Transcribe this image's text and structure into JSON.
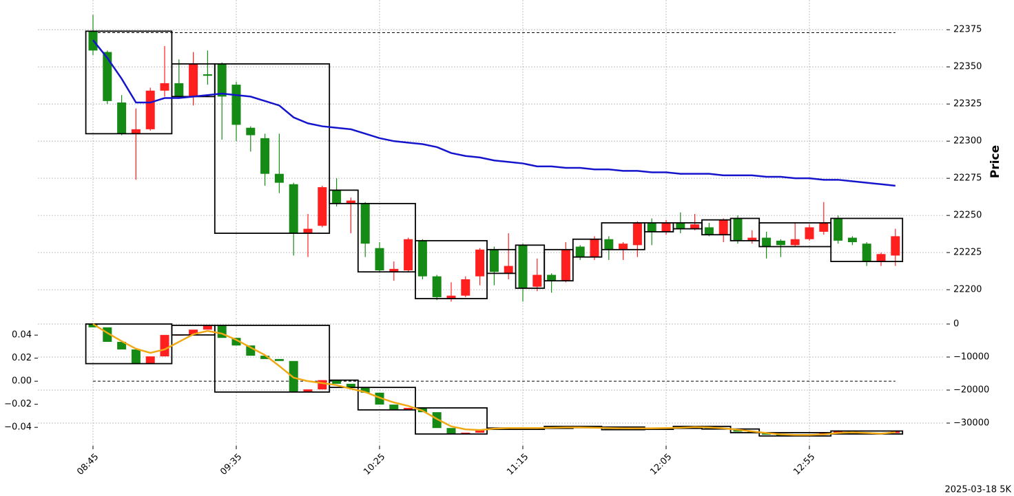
{
  "chart_data": [
    {
      "type": "candlestick",
      "ylabel": "Price",
      "open": [
        22374,
        22360,
        22326,
        22305,
        22308,
        22334,
        22339,
        22330,
        22345,
        22352,
        22338,
        22309,
        22302,
        22278,
        22271,
        22238,
        22243,
        22267,
        22258,
        22258,
        22228,
        22212,
        22213,
        22233,
        22209,
        22194,
        22196,
        22209,
        22227,
        22211,
        22230,
        22202,
        22210,
        22206,
        22229,
        22222,
        22234,
        22227,
        22230,
        22245,
        22239,
        22245,
        22241,
        22242,
        22237,
        22248,
        22233,
        22235,
        22233,
        22230,
        22234,
        22239,
        22248,
        22235,
        22231,
        22219,
        22223
      ],
      "high": [
        22385,
        22361,
        22331,
        22322,
        22336,
        22364,
        22355,
        22360,
        22361,
        22353,
        22340,
        22310,
        22305,
        22305,
        22272,
        22251,
        22270,
        22275,
        22262,
        22259,
        22232,
        22219,
        22235,
        22234,
        22210,
        22205,
        22209,
        22228,
        22229,
        22238,
        22231,
        22221,
        22211,
        22232,
        22230,
        22236,
        22236,
        22232,
        22246,
        22248,
        22247,
        22252,
        22251,
        22245,
        22248,
        22250,
        22240,
        22239,
        22234,
        22245,
        22244,
        22259,
        22250,
        22236,
        22232,
        22225,
        22241
      ],
      "low": [
        22358,
        22325,
        22304,
        22274,
        22307,
        22330,
        22329,
        22324,
        22338,
        22301,
        22300,
        22293,
        22270,
        22265,
        22223,
        22222,
        22242,
        22256,
        22238,
        22222,
        22212,
        22206,
        22212,
        22207,
        22193,
        22192,
        22195,
        22203,
        22203,
        22207,
        22192,
        22199,
        22198,
        22205,
        22220,
        22220,
        22220,
        22220,
        22222,
        22230,
        22237,
        22238,
        22240,
        22236,
        22232,
        22231,
        22231,
        22221,
        22222,
        22229,
        22233,
        22237,
        22231,
        22230,
        22216,
        22216,
        22216
      ],
      "close": [
        22361,
        22327,
        22305,
        22308,
        22334,
        22339,
        22330,
        22352,
        22344,
        22330,
        22311,
        22304,
        22278,
        22272,
        22238,
        22241,
        22269,
        22258,
        22260,
        22231,
        22213,
        22214,
        22234,
        22209,
        22195,
        22196,
        22207,
        22227,
        22212,
        22216,
        22201,
        22210,
        22206,
        22227,
        22222,
        22234,
        22227,
        22231,
        22245,
        22239,
        22245,
        22241,
        22244,
        22237,
        22247,
        22233,
        22235,
        22229,
        22230,
        22234,
        22242,
        22245,
        22233,
        22232,
        22219,
        22224,
        22236
      ],
      "line": {
        "color": "#1414cc",
        "values": [
          22368,
          22356,
          22342,
          22326,
          22326,
          22329,
          22329,
          22330,
          22331,
          22332,
          22331,
          22330,
          22327,
          22324,
          22316,
          22312,
          22310,
          22309,
          22308,
          22305,
          22302,
          22300,
          22299,
          22298,
          22296,
          22292,
          22290,
          22289,
          22287,
          22286,
          22285,
          22283,
          22283,
          22282,
          22282,
          22281,
          22281,
          22280,
          22280,
          22279,
          22279,
          22278,
          22278,
          22278,
          22277,
          22277,
          22277,
          22276,
          22276,
          22275,
          22275,
          22274,
          22274,
          22273,
          22272,
          22271,
          22270
        ]
      },
      "hline": 22373,
      "segments": [
        [
          0,
          5
        ],
        [
          6,
          8
        ],
        [
          9,
          16
        ],
        [
          17,
          18
        ],
        [
          19,
          22
        ],
        [
          23,
          27
        ],
        [
          28,
          29
        ],
        [
          30,
          31
        ],
        [
          32,
          33
        ],
        [
          34,
          35
        ],
        [
          36,
          38
        ],
        [
          39,
          40
        ],
        [
          41,
          42
        ],
        [
          43,
          44
        ],
        [
          45,
          46
        ],
        [
          47,
          51
        ],
        [
          52,
          56
        ]
      ],
      "ylim": [
        22182,
        22395
      ],
      "yticks": [
        22200,
        22225,
        22250,
        22275,
        22300,
        22325,
        22350,
        22375
      ],
      "grid": true,
      "up_color": "#ff1f1f",
      "down_color": "#158a15"
    },
    {
      "type": "candlestick",
      "categories": [
        "08:45",
        null,
        null,
        null,
        null,
        null,
        null,
        null,
        null,
        null,
        "09:35",
        null,
        null,
        null,
        null,
        null,
        null,
        null,
        null,
        null,
        "10:25",
        null,
        null,
        null,
        null,
        null,
        null,
        null,
        null,
        null,
        "11:15",
        null,
        null,
        null,
        null,
        null,
        null,
        null,
        null,
        null,
        "12:05",
        null,
        null,
        null,
        null,
        null,
        null,
        null,
        null,
        null,
        "12:55",
        null,
        null,
        null,
        null,
        null,
        null
      ],
      "open": [
        0,
        -1000,
        -5400,
        -7700,
        -12000,
        -9800,
        -3300,
        -3300,
        -1700,
        -400,
        -4200,
        -6500,
        -9600,
        -10600,
        -11200,
        -20600,
        -19800,
        -17000,
        -18100,
        -19200,
        -20800,
        -24400,
        -26000,
        -25400,
        -26700,
        -31500,
        -33300,
        -32900,
        -31900,
        -31500,
        -31700,
        -31900,
        -31600,
        -31300,
        -31000,
        -31400,
        -31200,
        -31800,
        -32000,
        -31700,
        -31900,
        -31600,
        -31200,
        -31000,
        -31600,
        -31800,
        -32600,
        -32900,
        -33500,
        -33900,
        -33700,
        -33500,
        -33000,
        -32500,
        -32800,
        -33300,
        -33000
      ],
      "close": [
        -1000,
        -5400,
        -7700,
        -12000,
        -9800,
        -3300,
        -3300,
        -1700,
        -400,
        -4200,
        -6500,
        -9600,
        -10600,
        -11200,
        -20600,
        -19800,
        -17000,
        -18100,
        -19200,
        -20800,
        -24400,
        -26000,
        -25400,
        -26700,
        -31500,
        -33300,
        -32900,
        -31900,
        -31500,
        -31700,
        -31900,
        -31600,
        -31300,
        -31000,
        -31400,
        -31200,
        -31800,
        -32000,
        -31700,
        -31900,
        -31600,
        -31200,
        -31000,
        -31600,
        -31800,
        -32600,
        -32900,
        -33500,
        -33900,
        -33700,
        -33500,
        -33000,
        -32500,
        -32800,
        -33300,
        -33000,
        -32400
      ],
      "bars_axis": "y2",
      "line": {
        "color": "#f0a814",
        "axis": "y2",
        "values": [
          0,
          -2700,
          -5200,
          -7500,
          -8750,
          -7700,
          -5400,
          -3100,
          -2100,
          -2900,
          -4800,
          -7100,
          -9400,
          -12700,
          -16250,
          -17300,
          -17900,
          -18500,
          -19600,
          -20600,
          -22300,
          -23750,
          -24800,
          -26250,
          -28750,
          -31000,
          -31900,
          -32100,
          -31700,
          -31500,
          -31500,
          -31500,
          -31400,
          -31300,
          -31300,
          -31400,
          -31500,
          -31600,
          -31600,
          -31600,
          -31500,
          -31400,
          -31200,
          -31300,
          -31600,
          -32000,
          -32500,
          -33000,
          -33400,
          -33600,
          -33600,
          -33400,
          -33000,
          -32800,
          -33000,
          -33200,
          -32800
        ]
      },
      "hline": 0,
      "segments": [
        [
          0,
          5
        ],
        [
          6,
          8
        ],
        [
          9,
          16
        ],
        [
          17,
          18
        ],
        [
          19,
          22
        ],
        [
          23,
          27
        ],
        [
          28,
          29
        ],
        [
          30,
          31
        ],
        [
          32,
          33
        ],
        [
          34,
          35
        ],
        [
          36,
          38
        ],
        [
          39,
          40
        ],
        [
          41,
          42
        ],
        [
          43,
          44
        ],
        [
          45,
          46
        ],
        [
          47,
          51
        ],
        [
          52,
          56
        ]
      ],
      "ylim": [
        -0.056,
        0.055
      ],
      "yticks": [
        0.04,
        0.02,
        {
          "value": 0,
          "label": "0.00"
        },
        {
          "value": -0.02,
          "label": "−0.02"
        },
        {
          "value": -0.04,
          "label": "−0.04"
        }
      ],
      "y2lim": [
        -36875,
        1875
      ],
      "y2ticks": [
        0,
        {
          "value": -10000,
          "label": "−10000"
        },
        {
          "value": -20000,
          "label": "−20000"
        },
        {
          "value": -30000,
          "label": "−30000"
        }
      ],
      "grid": true,
      "up_color": "#ff1f1f",
      "down_color": "#158a15"
    }
  ],
  "footer": "2025-03-18 5K"
}
